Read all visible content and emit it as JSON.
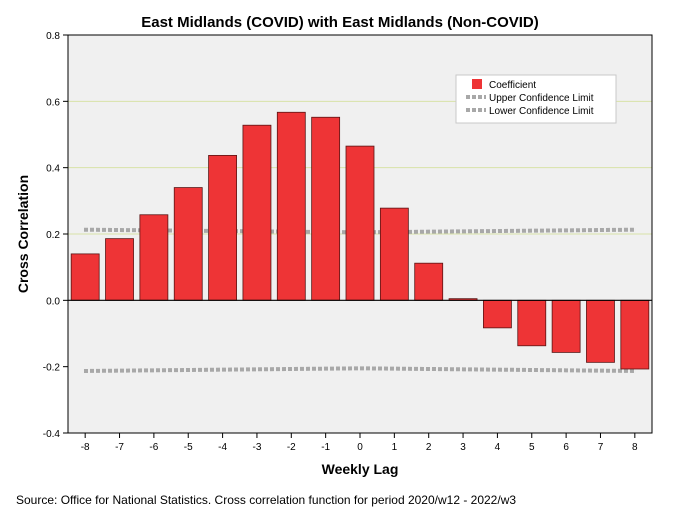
{
  "chart_data": {
    "type": "bar",
    "title": "East Midlands (COVID) with East Midlands (Non-COVID)",
    "xlabel": "Weekly Lag",
    "ylabel": "Cross Correlation",
    "categories": [
      "-8",
      "-7",
      "-6",
      "-5",
      "-4",
      "-3",
      "-2",
      "-1",
      "0",
      "1",
      "2",
      "3",
      "4",
      "5",
      "6",
      "7",
      "8"
    ],
    "ylim": [
      -0.4,
      0.8
    ],
    "yticks": [
      "-0.4",
      "-0.2",
      "0.0",
      "0.2",
      "0.4",
      "0.6",
      "0.8"
    ],
    "gridlines": [
      0.2,
      0.4,
      0.6
    ],
    "series": [
      {
        "name": "Coefficient",
        "values": [
          0.14,
          0.186,
          0.258,
          0.34,
          0.437,
          0.528,
          0.567,
          0.552,
          0.465,
          0.278,
          0.112,
          0.005,
          -0.083,
          -0.137,
          -0.157,
          -0.187,
          -0.207
        ]
      },
      {
        "name": "Upper Confidence Limit",
        "values": [
          0.213,
          0.212,
          0.211,
          0.21,
          0.209,
          0.208,
          0.207,
          0.206,
          0.205,
          0.206,
          0.207,
          0.208,
          0.209,
          0.21,
          0.211,
          0.212,
          0.213
        ]
      },
      {
        "name": "Lower Confidence Limit",
        "values": [
          -0.213,
          -0.212,
          -0.211,
          -0.21,
          -0.209,
          -0.208,
          -0.207,
          -0.206,
          -0.205,
          -0.206,
          -0.207,
          -0.208,
          -0.209,
          -0.21,
          -0.211,
          -0.212,
          -0.213
        ]
      }
    ],
    "legend": {
      "position": "top-right",
      "entries": [
        "Coefficient",
        "Upper Confidence Limit",
        "Lower Confidence Limit"
      ]
    },
    "colors": {
      "bar_fill": "#ee3436",
      "bar_stroke": "#5a1414",
      "confidence_line": "#a8a8a8",
      "plot_background": "#f0f0f0",
      "gridline": "#d8e2a8"
    }
  },
  "source_note": "Source: Office for National Statistics. Cross correlation function for period 2020/w12 - 2022/w3"
}
